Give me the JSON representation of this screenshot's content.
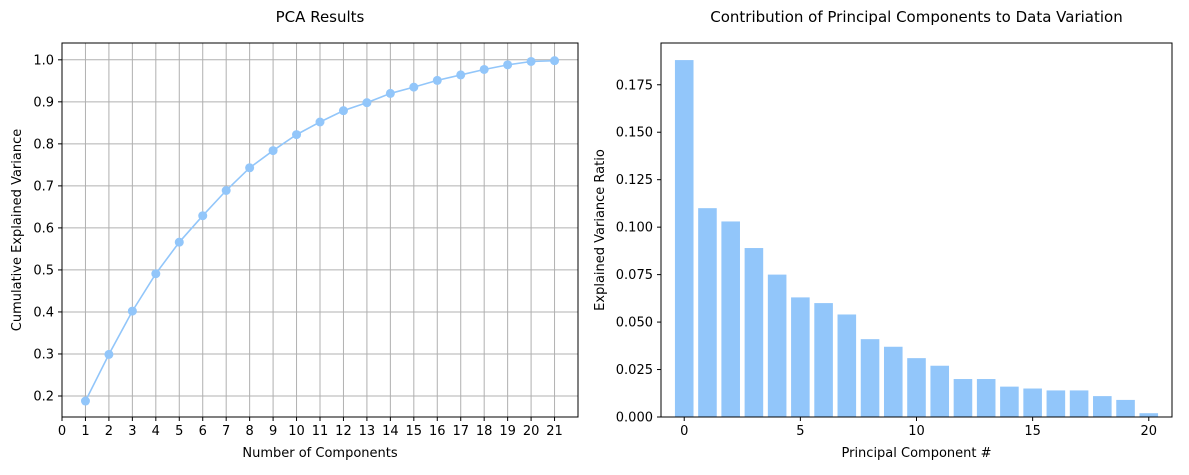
{
  "chart_data": [
    {
      "type": "line",
      "title": "PCA Results",
      "xlabel": "Number of Components",
      "ylabel": "Cumulative Explained Variance",
      "xlim": [
        0,
        22
      ],
      "ylim": [
        0.15,
        1.04
      ],
      "xticks": [
        0,
        1,
        2,
        3,
        4,
        5,
        6,
        7,
        8,
        9,
        10,
        11,
        12,
        13,
        14,
        15,
        16,
        17,
        18,
        19,
        20,
        21
      ],
      "yticks": [
        0.2,
        0.3,
        0.4,
        0.5,
        0.6,
        0.7,
        0.8,
        0.9,
        1.0
      ],
      "ytick_labels": [
        "0.2",
        "0.3",
        "0.4",
        "0.5",
        "0.6",
        "0.7",
        "0.8",
        "0.9",
        "1.0"
      ],
      "grid": true,
      "color": "#92c6fa",
      "x": [
        1,
        2,
        3,
        4,
        5,
        6,
        7,
        8,
        9,
        10,
        11,
        12,
        13,
        14,
        15,
        16,
        17,
        18,
        19,
        20,
        21
      ],
      "y": [
        0.188,
        0.299,
        0.402,
        0.491,
        0.566,
        0.629,
        0.689,
        0.743,
        0.784,
        0.822,
        0.852,
        0.879,
        0.898,
        0.92,
        0.935,
        0.951,
        0.964,
        0.977,
        0.988,
        0.996,
        0.998
      ]
    },
    {
      "type": "bar",
      "title": "Contribution of Principal Components to Data Variation",
      "xlabel": "Principal Component #",
      "ylabel": "Explained Variance Ratio",
      "xlim": [
        -1.0,
        21.0
      ],
      "ylim": [
        0,
        0.197
      ],
      "xticks": [
        0,
        5,
        10,
        15,
        20
      ],
      "yticks": [
        0,
        0.025,
        0.05,
        0.075,
        0.1,
        0.125,
        0.15,
        0.175
      ],
      "ytick_labels": [
        "0.000",
        "0.025",
        "0.050",
        "0.075",
        "0.100",
        "0.125",
        "0.150",
        "0.175"
      ],
      "grid": false,
      "color": "#92c6fa",
      "categories": [
        0,
        1,
        2,
        3,
        4,
        5,
        6,
        7,
        8,
        9,
        10,
        11,
        12,
        13,
        14,
        15,
        16,
        17,
        18,
        19,
        20
      ],
      "values": [
        0.188,
        0.11,
        0.103,
        0.089,
        0.075,
        0.063,
        0.06,
        0.054,
        0.041,
        0.037,
        0.031,
        0.027,
        0.02,
        0.02,
        0.016,
        0.015,
        0.014,
        0.014,
        0.011,
        0.009,
        0.002
      ]
    }
  ]
}
